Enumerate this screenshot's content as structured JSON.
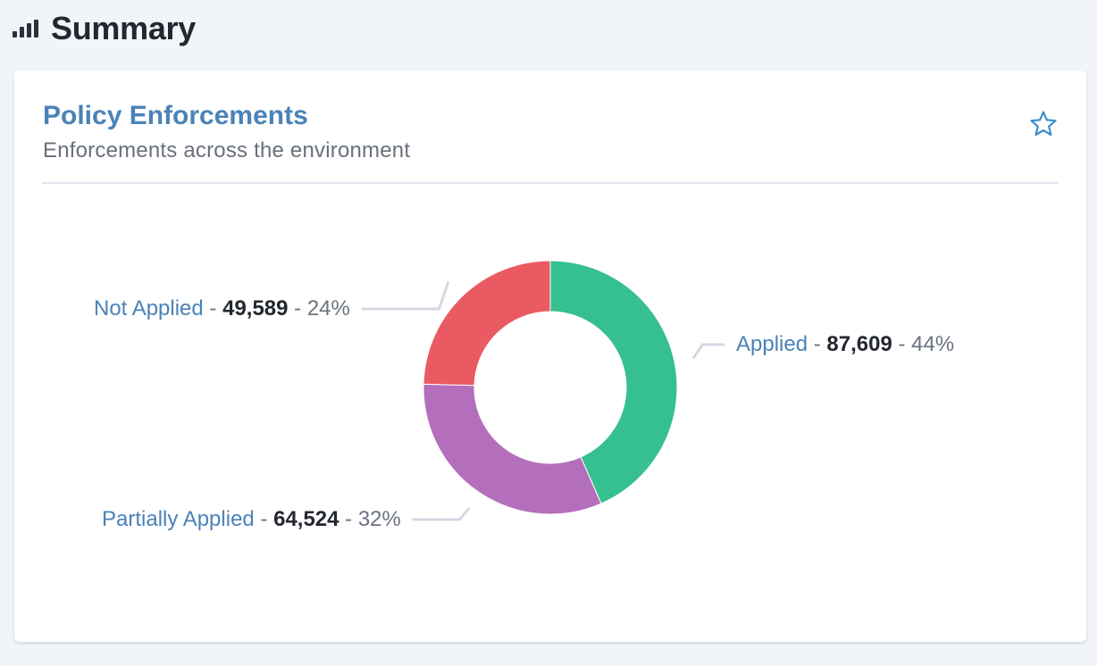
{
  "header": {
    "title": "Summary",
    "icon": "bar-chart-icon"
  },
  "card": {
    "title": "Policy Enforcements",
    "subtitle": "Enforcements across the environment",
    "favorite_icon": "star-outline-icon",
    "accent_color": "#4a82b8"
  },
  "chart_data": {
    "type": "pie",
    "donut": true,
    "slices": [
      {
        "label": "Applied",
        "value": 87609,
        "value_text": "87,609",
        "percent_text": "44%",
        "color": "#36c08f"
      },
      {
        "label": "Partially Applied",
        "value": 64524,
        "value_text": "64,524",
        "percent_text": "32%",
        "color": "#b46fbc"
      },
      {
        "label": "Not Applied",
        "value": 49589,
        "value_text": "49,589",
        "percent_text": "24%",
        "color": "#e95a62"
      }
    ],
    "separator": " - "
  }
}
